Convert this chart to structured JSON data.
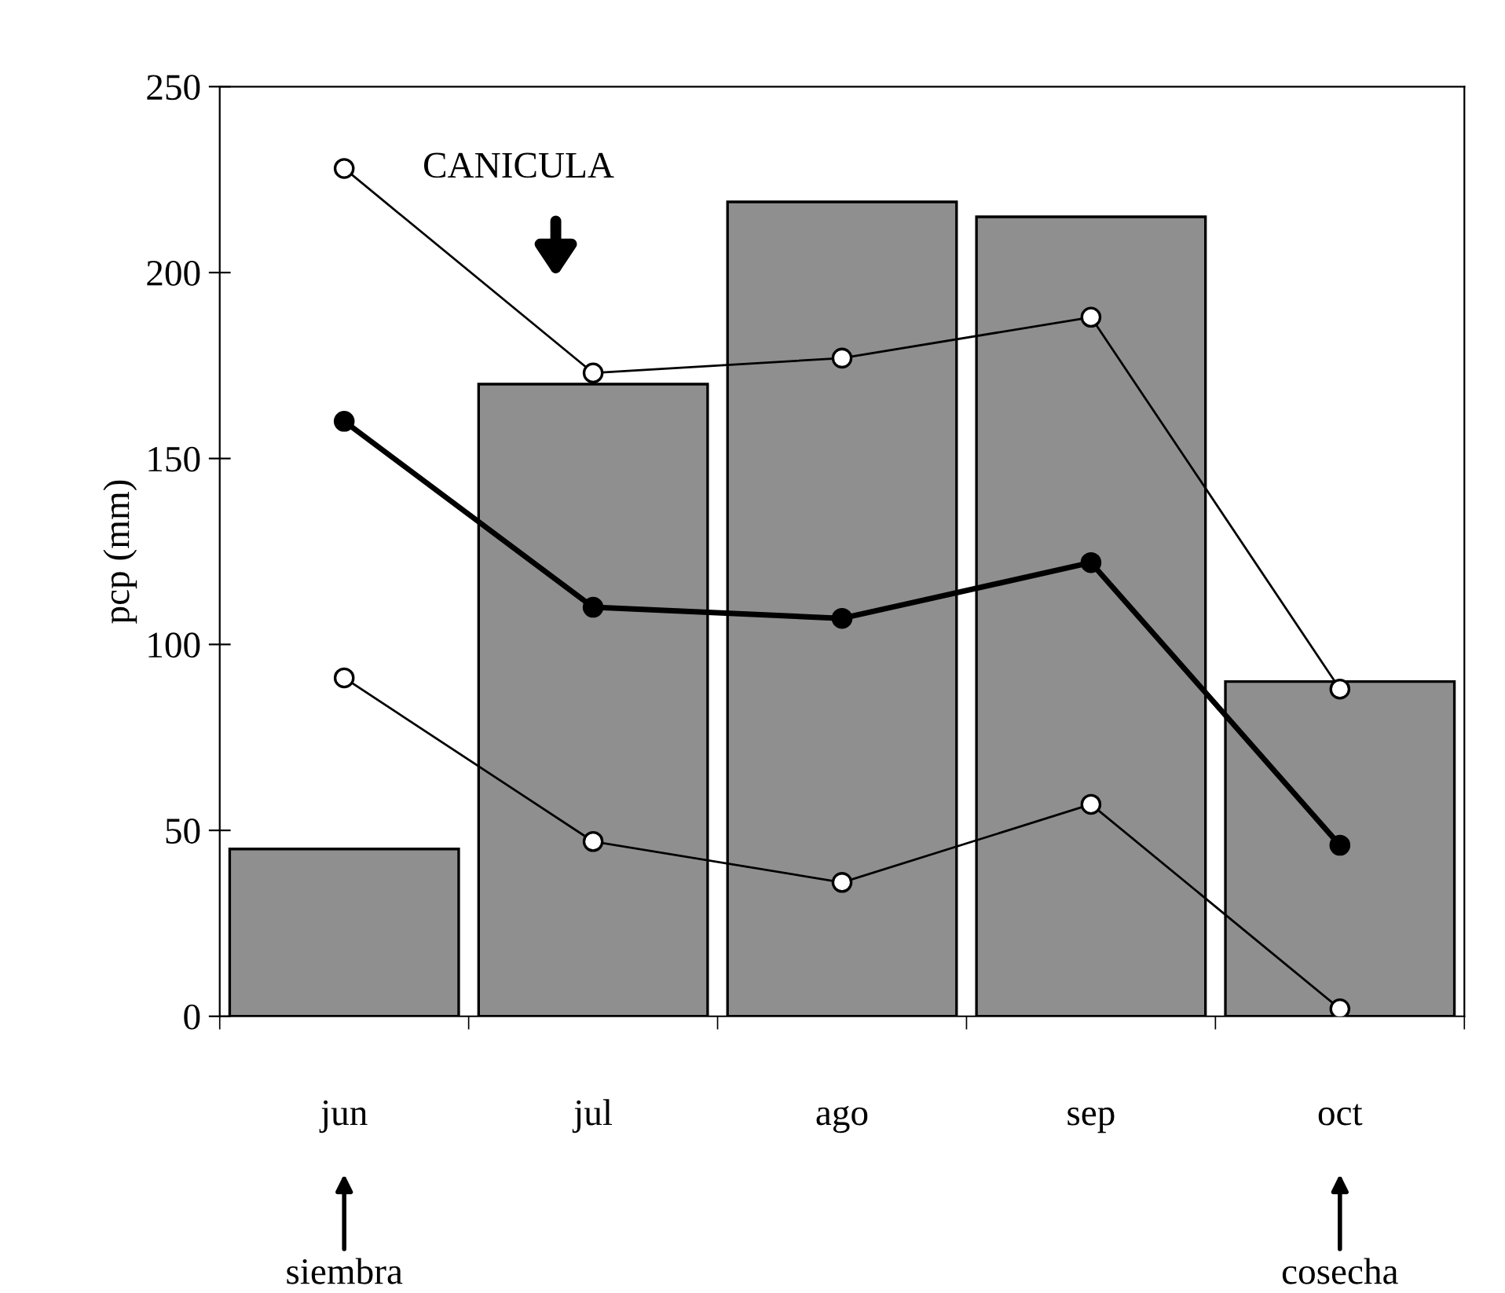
{
  "chart_data": {
    "type": "bar",
    "ylabel": "pcp (mm)",
    "categories": [
      "jun",
      "jul",
      "ago",
      "sep",
      "oct"
    ],
    "values": [
      45,
      170,
      219,
      215,
      90
    ],
    "color": "#8f8f8f",
    "series": [
      {
        "type": "line",
        "color": "#000000",
        "colors": [
          "#ffffff",
          "#ffffff",
          "#ffffff",
          "#ffffff",
          "#ffffff"
        ],
        "values": [
          228,
          173,
          177,
          188,
          88
        ]
      },
      {
        "type": "line",
        "color": "#000000",
        "values": [
          160,
          110,
          107,
          122,
          46
        ]
      },
      {
        "type": "line",
        "color": "#000000",
        "colors": [
          "#ffffff",
          "#ffffff",
          "#ffffff",
          "#ffffff",
          "#ffffff"
        ],
        "values": [
          91,
          47,
          36,
          57,
          2
        ]
      }
    ],
    "marker": "circle",
    "line_style": "solid",
    "ylim": [
      0,
      250
    ],
    "yticks": [
      0,
      50,
      100,
      150,
      200,
      250
    ],
    "grid": false,
    "legend": false,
    "annotations": [
      "CANICULA",
      "siembra",
      "cosecha"
    ]
  }
}
